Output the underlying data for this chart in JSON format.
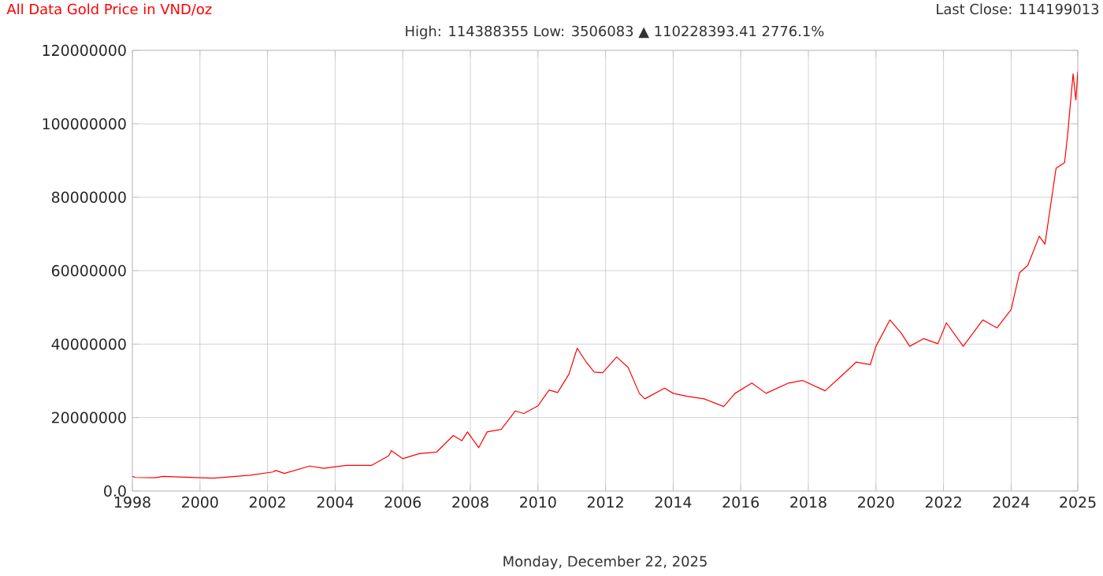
{
  "chart_data": {
    "type": "line",
    "title": "All Data Gold Price in VND/oz",
    "subtitle": "High: 114388355 Low: 3506083 ▲ 110228393.41 2776.1%",
    "annotations": [
      "Last Close: 114199013",
      "Monday, December 22, 2025"
    ],
    "x": [
      "1998-01",
      "1998-02",
      "1998-09",
      "1998-12",
      "2000-01",
      "2000-06",
      "2001-07",
      "2002-03",
      "2002-04",
      "2002-07",
      "2003-04",
      "2003-09",
      "2004-05",
      "2005-02",
      "2005-08",
      "2005-09",
      "2006-01",
      "2006-07",
      "2007-01",
      "2007-07",
      "2007-10",
      "2007-12",
      "2008-04",
      "2008-07",
      "2008-12",
      "2009-05",
      "2009-08",
      "2010-01",
      "2010-05",
      "2010-08",
      "2010-12",
      "2011-03",
      "2011-06",
      "2011-09",
      "2011-12",
      "2012-05",
      "2012-09",
      "2013-01",
      "2013-03",
      "2013-10",
      "2014-01",
      "2014-06",
      "2014-12",
      "2015-07",
      "2015-11",
      "2016-05",
      "2016-10",
      "2017-06",
      "2017-11",
      "2018-07",
      "2018-12",
      "2019-06",
      "2019-11",
      "2020-01",
      "2020-06",
      "2020-10",
      "2021-01",
      "2021-06",
      "2021-11",
      "2022-02",
      "2022-08",
      "2023-03",
      "2023-08",
      "2024-01",
      "2024-04",
      "2024-07",
      "2024-11",
      "2025-01",
      "2025-05",
      "2025-08",
      "2025-09",
      "2025-11",
      "2025-12",
      "2025-12-22"
    ],
    "series": [
      {
        "color": "#ff0000",
        "values": [
          4000000,
          3700000,
          3600000,
          4000000,
          3600000,
          3500000,
          4300000,
          5200000,
          5600000,
          4800000,
          6800000,
          6200000,
          7000000,
          7000000,
          9600000,
          11000000,
          8800000,
          10200000,
          10600000,
          15100000,
          13700000,
          16100000,
          11800000,
          16100000,
          16800000,
          21800000,
          21100000,
          23200000,
          27500000,
          26800000,
          31800000,
          38900000,
          35300000,
          32400000,
          32200000,
          36500000,
          33700000,
          26600000,
          25100000,
          28000000,
          26600000,
          25800000,
          25100000,
          23000000,
          26600000,
          29400000,
          26600000,
          29400000,
          30100000,
          27300000,
          30800000,
          35100000,
          34400000,
          39400000,
          46600000,
          43000000,
          39400000,
          41500000,
          40100000,
          45800000,
          39400000,
          46600000,
          44400000,
          49400000,
          59400000,
          61500000,
          69400000,
          67200000,
          87900000,
          89400000,
          96500000,
          113600000,
          106500000,
          114200000
        ]
      }
    ],
    "xlim": [
      "1998",
      "2025-12-22"
    ],
    "xticks": [
      "1998",
      "2000",
      "2002",
      "2004",
      "2006",
      "2008",
      "2010",
      "2012",
      "2014",
      "2016",
      "2018",
      "2020",
      "2022",
      "2024",
      {
        "value": "2025-12-22",
        "label": "2025"
      }
    ],
    "ylim": [
      0,
      120000000
    ],
    "yticks": [
      {
        "value": 0,
        "label": "0.0"
      },
      20000000,
      40000000,
      60000000,
      80000000,
      100000000,
      120000000
    ],
    "grid": true,
    "marker": "none",
    "line_style": "solid"
  }
}
